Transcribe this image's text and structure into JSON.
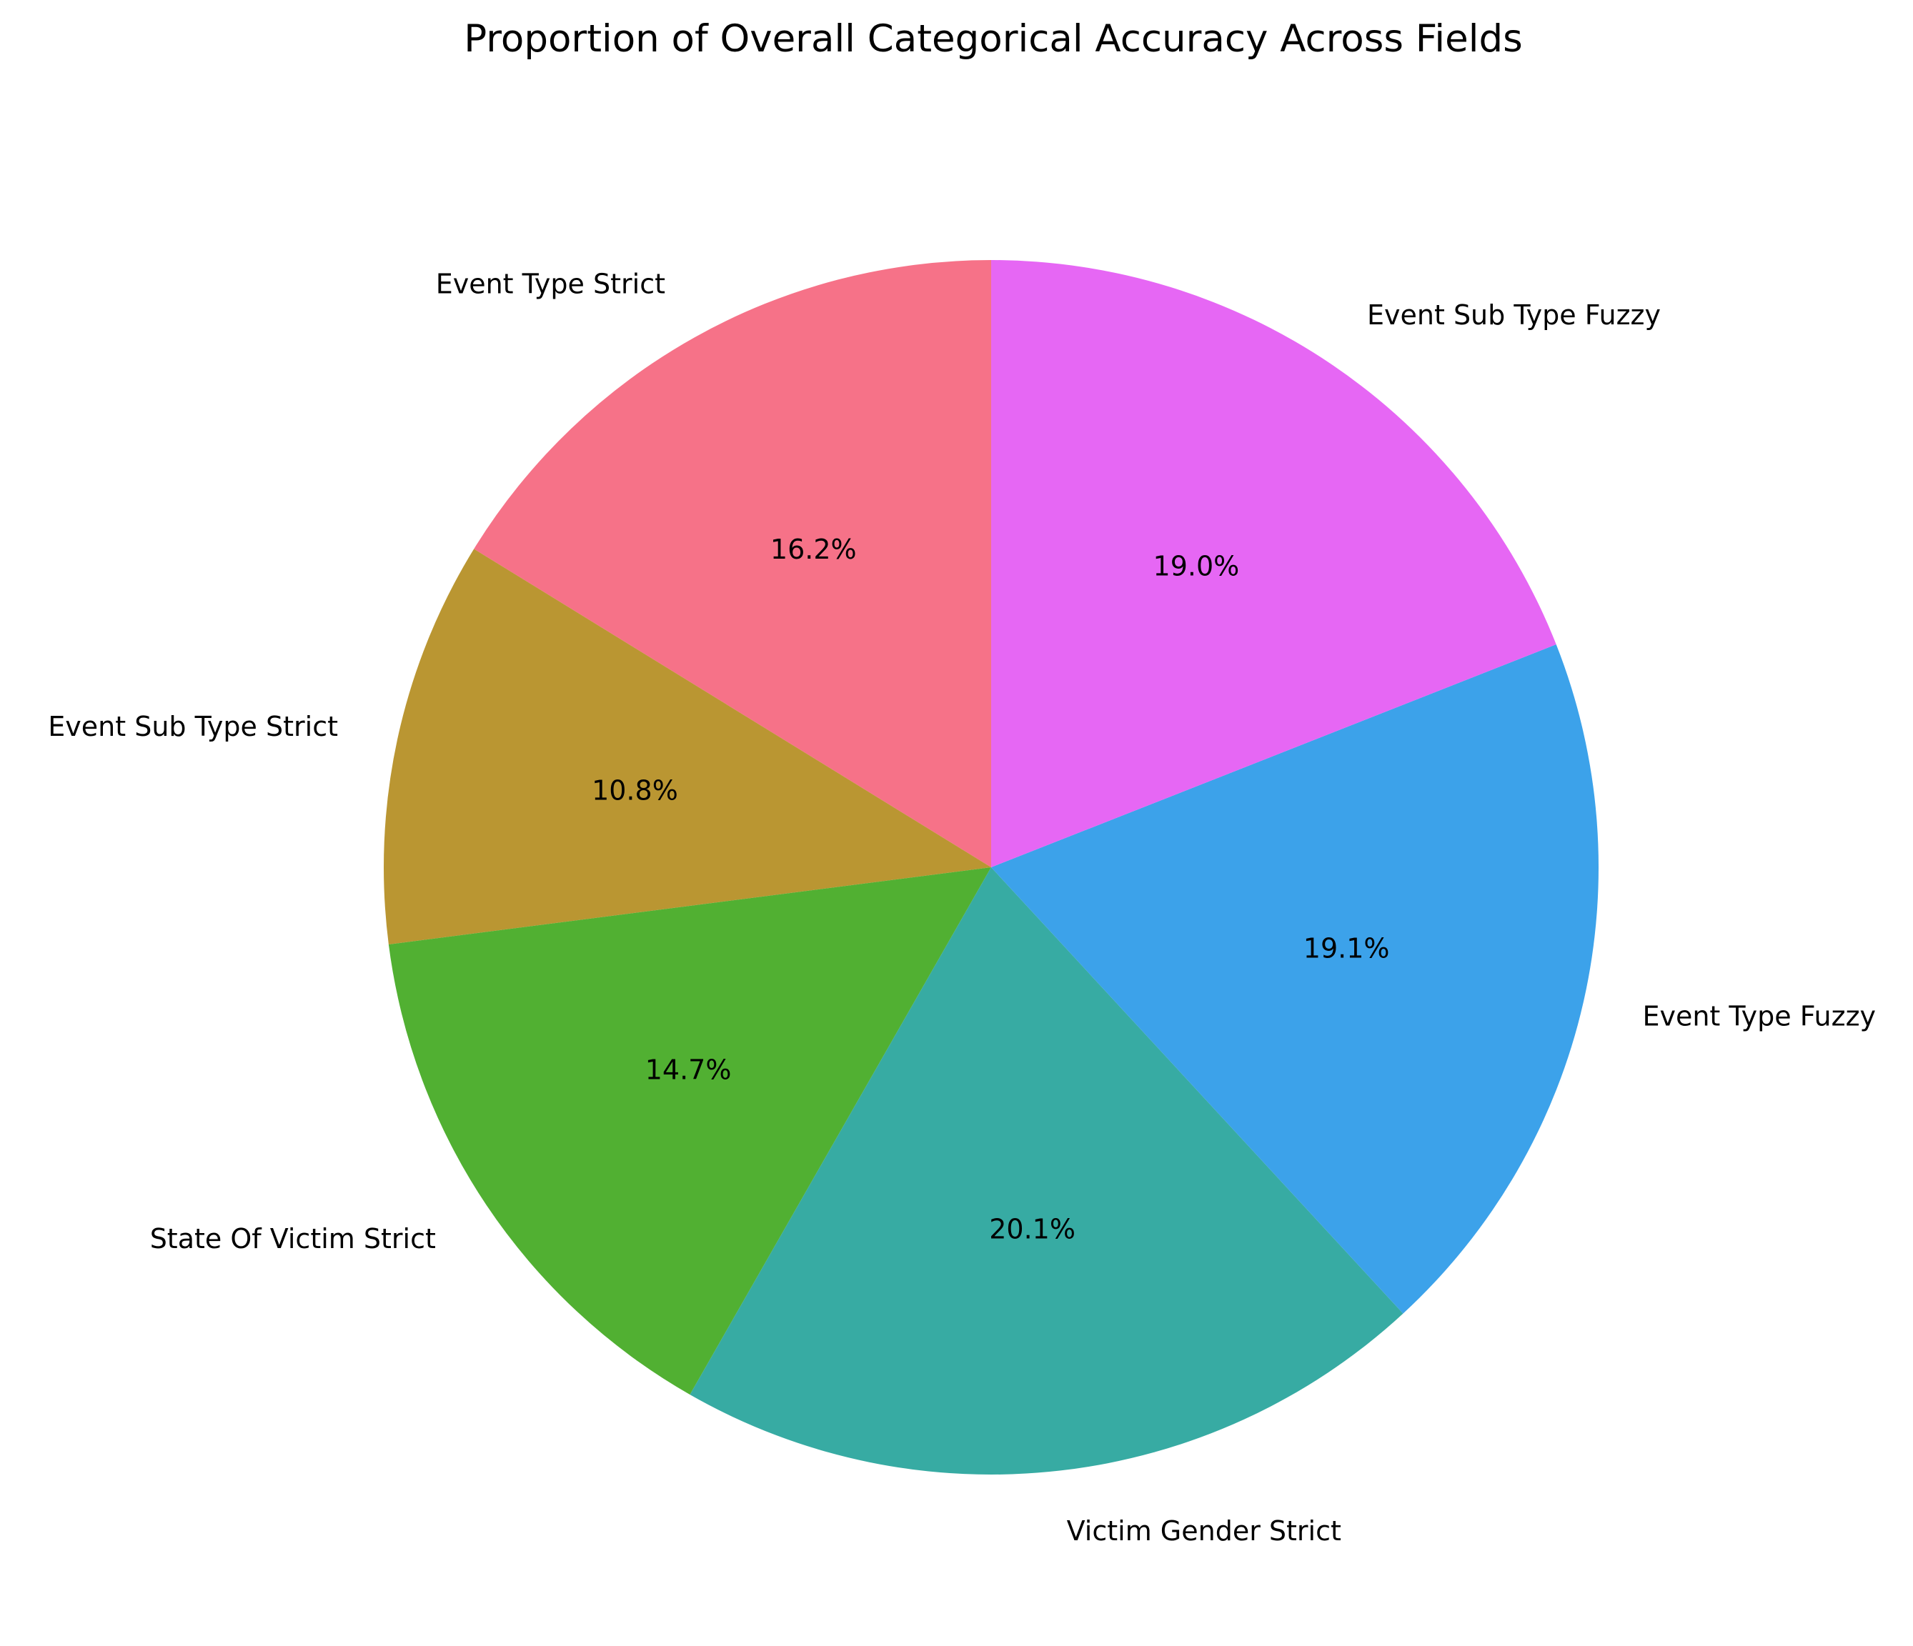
{
  "chart_data": {
    "type": "pie",
    "title": "Proportion of Overall Categorical Accuracy Across Fields",
    "start_angle_deg": 90,
    "direction": "counterclockwise",
    "slices": [
      {
        "label": "Event Type Strict",
        "value": 16.2,
        "pct_label": "16.2%",
        "color": "#f67288"
      },
      {
        "label": "Event Sub Type Strict",
        "value": 10.8,
        "pct_label": "10.8%",
        "color": "#ba9632"
      },
      {
        "label": "State Of Victim Strict",
        "value": 14.7,
        "pct_label": "14.7%",
        "color": "#51b032"
      },
      {
        "label": "Victim Gender Strict",
        "value": 20.1,
        "pct_label": "20.1%",
        "color": "#37aba3"
      },
      {
        "label": "Event Type Fuzzy",
        "value": 19.1,
        "pct_label": "19.1%",
        "color": "#3ca2ea"
      },
      {
        "label": "Event Sub Type Fuzzy",
        "value": 19.0,
        "pct_label": "19.0%",
        "color": "#e667f4"
      }
    ]
  }
}
